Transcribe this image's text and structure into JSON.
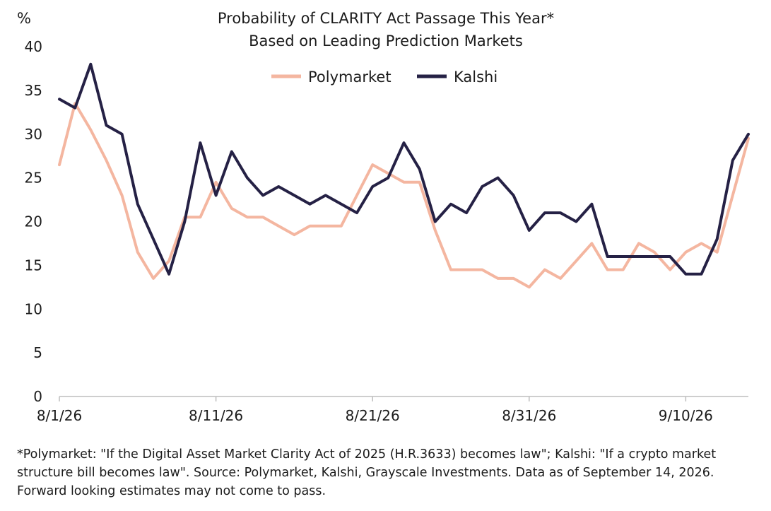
{
  "chart_data": {
    "type": "line",
    "title": "Probability of CLARITY Act Passage This Year*",
    "subtitle": "Based on Leading Prediction Markets",
    "ylabel": "%",
    "xlabel": "",
    "ylim": [
      0,
      40
    ],
    "yticks": [
      "0",
      "5",
      "10",
      "15",
      "20",
      "25",
      "30",
      "35",
      "40"
    ],
    "xticks": [
      {
        "date": "2026-08-01",
        "label": "8/1/26"
      },
      {
        "date": "2026-08-11",
        "label": "8/11/26"
      },
      {
        "date": "2026-08-21",
        "label": "8/21/26"
      },
      {
        "date": "2026-08-31",
        "label": "8/31/26"
      },
      {
        "date": "2026-09-10",
        "label": "9/10/26"
      }
    ],
    "x": [
      "2026-08-01",
      "2026-08-02",
      "2026-08-03",
      "2026-08-04",
      "2026-08-05",
      "2026-08-06",
      "2026-08-07",
      "2026-08-08",
      "2026-08-09",
      "2026-08-10",
      "2026-08-11",
      "2026-08-12",
      "2026-08-13",
      "2026-08-14",
      "2026-08-15",
      "2026-08-16",
      "2026-08-17",
      "2026-08-18",
      "2026-08-19",
      "2026-08-20",
      "2026-08-21",
      "2026-08-22",
      "2026-08-23",
      "2026-08-24",
      "2026-08-25",
      "2026-08-26",
      "2026-08-27",
      "2026-08-28",
      "2026-08-29",
      "2026-08-30",
      "2026-08-31",
      "2026-09-01",
      "2026-09-02",
      "2026-09-03",
      "2026-09-04",
      "2026-09-05",
      "2026-09-06",
      "2026-09-07",
      "2026-09-08",
      "2026-09-09",
      "2026-09-10",
      "2026-09-11",
      "2026-09-12",
      "2026-09-13",
      "2026-09-14"
    ],
    "series": [
      {
        "name": "Polymarket",
        "color": "#f4b6a0",
        "values": [
          26.5,
          33.5,
          30.5,
          27,
          23,
          16.5,
          13.5,
          15.5,
          20.5,
          20.5,
          24.5,
          21.5,
          20.5,
          20.5,
          19.5,
          18.5,
          19.5,
          19.5,
          19.5,
          23,
          26.5,
          25.5,
          24.5,
          24.5,
          19,
          14.5,
          14.5,
          14.5,
          13.5,
          13.5,
          12.5,
          14.5,
          13.5,
          15.5,
          17.5,
          14.5,
          14.5,
          17.5,
          16.5,
          14.5,
          16.5,
          17.5,
          16.5,
          23,
          29.5
        ]
      },
      {
        "name": "Kalshi",
        "color": "#252145",
        "values": [
          34,
          33,
          38,
          31,
          30,
          22,
          18,
          14,
          20,
          29,
          23,
          28,
          25,
          23,
          24,
          23,
          22,
          23,
          22,
          21,
          24,
          25,
          29,
          26,
          20,
          22,
          21,
          24,
          25,
          23,
          19,
          21,
          21,
          20,
          22,
          16,
          16,
          16,
          16,
          16,
          14,
          14,
          18,
          27,
          30
        ]
      }
    ],
    "legend": "top-center",
    "grid": false
  },
  "footnote": "*Polymarket: \"If the Digital Asset Market Clarity Act of 2025 (H.R.3633) becomes law\"; Kalshi: \"If a crypto market structure bill becomes law\". Source: Polymarket, Kalshi, Grayscale Investments. Data as of September 14, 2026. Forward looking estimates may not come to pass."
}
